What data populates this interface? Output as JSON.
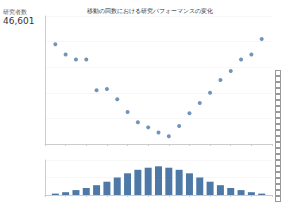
{
  "title": "移動の回数における研究パフォーマンスの変化",
  "kpi": {
    "label": "研究者数",
    "value": "46,601"
  },
  "chart_data": [
    {
      "type": "scatter",
      "marker": "circle",
      "color": "#4e79a7",
      "x": [
        1,
        2,
        3,
        4,
        5,
        6,
        7,
        8,
        9,
        10,
        11,
        12,
        13,
        14,
        15,
        16,
        17,
        18,
        19,
        20,
        21
      ],
      "values": [
        7.8,
        7.0,
        6.6,
        6.6,
        4.2,
        4.3,
        3.5,
        2.5,
        1.7,
        1.3,
        0.9,
        0.6,
        1.4,
        2.4,
        3.2,
        4.0,
        5.0,
        5.7,
        6.6,
        7.0,
        8.2
      ],
      "xlim": [
        0,
        22
      ],
      "xticks": [
        0,
        2,
        4,
        6,
        8,
        10,
        12,
        14,
        16,
        18,
        20,
        22
      ],
      "ylim": [
        0,
        10
      ],
      "yticks": [
        0,
        2,
        4,
        6,
        8,
        10
      ],
      "grid": true,
      "tick_labels": false
    },
    {
      "type": "bar",
      "color": "#4e79a7",
      "x": [
        1,
        2,
        3,
        4,
        5,
        6,
        7,
        8,
        9,
        10,
        11,
        12,
        13,
        14,
        15,
        16,
        17,
        18,
        19,
        20,
        21
      ],
      "values": [
        200,
        400,
        700,
        1000,
        1400,
        1900,
        2500,
        3100,
        3600,
        3900,
        4100,
        3900,
        3600,
        3100,
        2500,
        1900,
        1400,
        1000,
        700,
        400,
        200
      ],
      "xlim": [
        0,
        22
      ],
      "xticks": [
        0,
        2,
        4,
        6,
        8,
        10,
        12,
        14,
        16,
        18,
        20,
        22
      ],
      "ylim": [
        0,
        5000
      ],
      "yticks": [
        0,
        2500,
        5000
      ],
      "grid": true,
      "tick_labels": false
    }
  ]
}
